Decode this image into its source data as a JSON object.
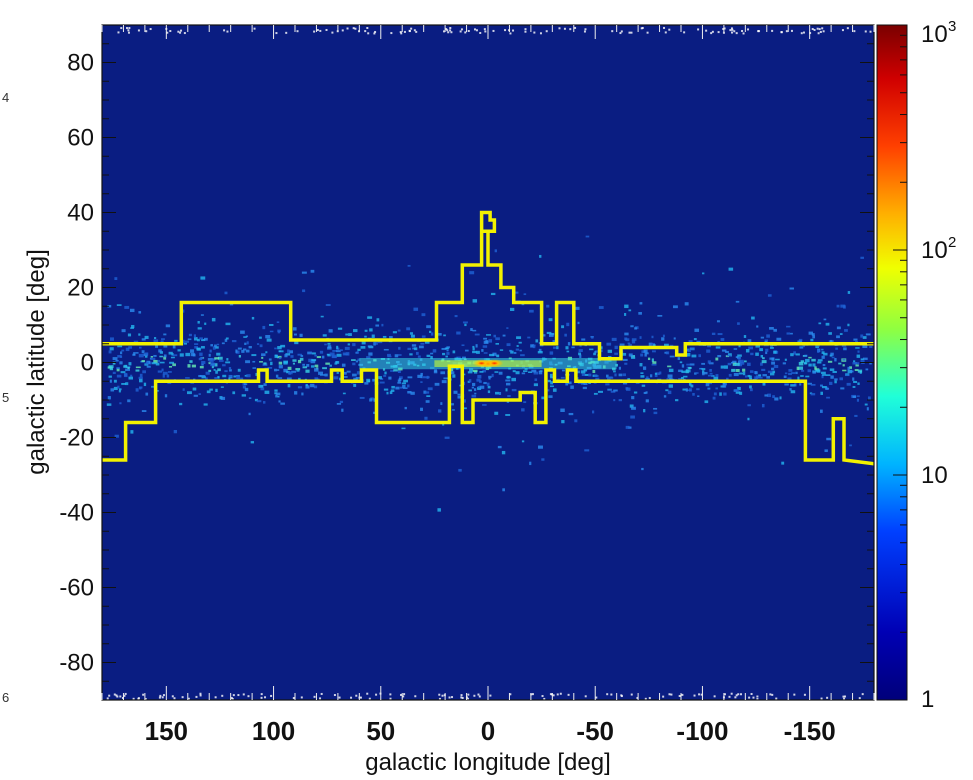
{
  "margin_numbers": [
    "4",
    "5",
    "6"
  ],
  "chart_data": {
    "type": "heatmap",
    "xlabel": "galactic longitude [deg]",
    "ylabel": "galactic latitude [deg]",
    "xlim": [
      180,
      -180
    ],
    "ylim": [
      -90,
      90
    ],
    "x_ticks": [
      150,
      100,
      50,
      0,
      -50,
      -100,
      -150
    ],
    "x_tick_labels": [
      "150",
      "100",
      "50",
      "0",
      "-50",
      "-100",
      "-150"
    ],
    "y_ticks": [
      80,
      60,
      40,
      20,
      0,
      -20,
      -40,
      -60,
      -80
    ],
    "y_tick_labels": [
      "80",
      "60",
      "40",
      "20",
      "0",
      "-20",
      "-40",
      "-60",
      "-80"
    ],
    "colorbar": {
      "scale": "log",
      "range": [
        1,
        1000
      ],
      "major_ticks": [
        1,
        10,
        100,
        1000
      ],
      "labels": [
        {
          "base": "1",
          "sup": ""
        },
        {
          "base": "10",
          "sup": ""
        },
        {
          "base": "10",
          "sup": "2"
        },
        {
          "base": "10",
          "sup": "3"
        }
      ],
      "colors": [
        "#00007a",
        "#0000c8",
        "#0050ff",
        "#00c8ff",
        "#40ffb8",
        "#c8ff30",
        "#ffdd00",
        "#ff7000",
        "#e00000",
        "#7a0000"
      ]
    },
    "background_color": "#0a1d82",
    "boundary_color": "#f2f200",
    "upper_boundary": [
      [
        180,
        5
      ],
      [
        143,
        5
      ],
      [
        143,
        16
      ],
      [
        92,
        16
      ],
      [
        92,
        6
      ],
      [
        24,
        6
      ],
      [
        24,
        16
      ],
      [
        12,
        16
      ],
      [
        12,
        26
      ],
      [
        3,
        26
      ],
      [
        3,
        35
      ],
      [
        -3,
        35
      ],
      [
        -3,
        38
      ],
      [
        -1,
        38
      ],
      [
        -1,
        40
      ],
      [
        3,
        40
      ],
      [
        3,
        35
      ],
      [
        0,
        35
      ],
      [
        0,
        26
      ],
      [
        -6,
        26
      ],
      [
        -6,
        20
      ],
      [
        -12,
        20
      ],
      [
        -12,
        16
      ],
      [
        -25,
        16
      ],
      [
        -25,
        5
      ],
      [
        -32,
        5
      ],
      [
        -32,
        16
      ],
      [
        -40,
        16
      ],
      [
        -40,
        5
      ],
      [
        -52,
        5
      ],
      [
        -52,
        1
      ],
      [
        -62,
        1
      ],
      [
        -62,
        4
      ],
      [
        -88,
        4
      ],
      [
        -88,
        2
      ],
      [
        -92,
        2
      ],
      [
        -92,
        5
      ],
      [
        -180,
        5
      ]
    ],
    "lower_boundary": [
      [
        180,
        -26
      ],
      [
        169,
        -26
      ],
      [
        169,
        -16
      ],
      [
        157,
        -16
      ],
      [
        157,
        -16
      ],
      [
        155,
        -16
      ],
      [
        155,
        -5
      ],
      [
        107,
        -5
      ],
      [
        107,
        -2
      ],
      [
        103,
        -2
      ],
      [
        103,
        -5
      ],
      [
        73,
        -5
      ],
      [
        73,
        -2
      ],
      [
        68,
        -2
      ],
      [
        68,
        -5
      ],
      [
        59,
        -5
      ],
      [
        59,
        -2
      ],
      [
        52,
        -2
      ],
      [
        52,
        -16
      ],
      [
        22,
        -16
      ],
      [
        22,
        -16
      ],
      [
        18,
        -16
      ],
      [
        18,
        -1
      ],
      [
        12,
        -1
      ],
      [
        12,
        -16
      ],
      [
        7,
        -16
      ],
      [
        7,
        -10
      ],
      [
        -15,
        -10
      ],
      [
        -15,
        -8
      ],
      [
        -22,
        -8
      ],
      [
        -22,
        -16
      ],
      [
        -27,
        -16
      ],
      [
        -27,
        -2
      ],
      [
        -31,
        -2
      ],
      [
        -31,
        -5
      ],
      [
        -37,
        -5
      ],
      [
        -37,
        -2
      ],
      [
        -41,
        -2
      ],
      [
        -41,
        -5
      ],
      [
        -148,
        -5
      ],
      [
        -148,
        -26
      ],
      [
        -161,
        -26
      ],
      [
        -161,
        -15
      ],
      [
        -166,
        -15
      ],
      [
        -166,
        -26
      ],
      [
        -180,
        -27
      ]
    ],
    "hot_spots": [
      {
        "x": 0,
        "y": -0.3,
        "value": 900
      },
      {
        "x": 3,
        "y": -0.2,
        "value": 500
      },
      {
        "x": -3,
        "y": -0.2,
        "value": 400
      }
    ]
  }
}
